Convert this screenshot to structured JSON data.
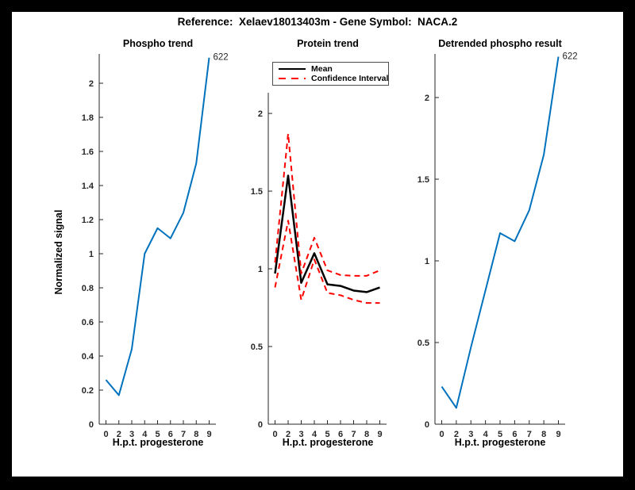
{
  "figure": {
    "title": "Reference:  Xelaev18013403m - Gene Symbol:  NACA.2",
    "background": "#ffffff",
    "frame_color": "#000000"
  },
  "axis_style": {
    "spine_color": "#262626",
    "tick_label_color": "#262626",
    "title_color": "#000000"
  },
  "chart_data": [
    {
      "type": "line",
      "title": "Phospho trend",
      "xlabel": "H.p.t. progesterone",
      "ylabel": "Normalized signal",
      "categories": [
        "0",
        "2",
        "3",
        "4",
        "5",
        "6",
        "7",
        "8",
        "9"
      ],
      "series": [
        {
          "name": "phospho-trend",
          "color": "#0072BD",
          "style": "solid",
          "width": 2,
          "values": [
            0.26,
            0.17,
            0.44,
            1.0,
            1.15,
            1.09,
            1.24,
            1.53,
            2.15
          ]
        }
      ],
      "annotation": {
        "text": "622",
        "position": "last-point"
      },
      "ylim": [
        0,
        2.172
      ],
      "yticks": [
        0,
        0.2,
        0.4,
        0.6,
        0.8,
        1,
        1.2,
        1.4,
        1.6,
        1.8,
        2
      ],
      "yticklabels": [
        "0",
        "0.2",
        "0.4",
        "0.6",
        "0.8",
        "1",
        "1.2",
        "1.4",
        "1.6",
        "1.8",
        "2"
      ],
      "grid": false,
      "legend": null
    },
    {
      "type": "line",
      "title": "Protein trend",
      "xlabel": "H.p.t. progesterone",
      "ylabel": "",
      "categories": [
        "0",
        "2",
        "3",
        "4",
        "5",
        "6",
        "7",
        "8",
        "9"
      ],
      "series": [
        {
          "name": "mean",
          "color": "#000000",
          "style": "solid",
          "width": 2.5,
          "values": [
            0.97,
            1.6,
            0.91,
            1.1,
            0.9,
            0.89,
            0.86,
            0.85,
            0.88
          ]
        },
        {
          "name": "confidence-interval-upper",
          "color": "#ff0000",
          "style": "dashed",
          "width": 2,
          "values": [
            1.04,
            1.87,
            0.97,
            1.2,
            0.99,
            0.96,
            0.955,
            0.955,
            0.99
          ]
        },
        {
          "name": "confidence-interval-lower",
          "color": "#ff0000",
          "style": "dashed",
          "width": 2,
          "values": [
            0.88,
            1.31,
            0.8,
            1.06,
            0.845,
            0.83,
            0.8,
            0.78,
            0.78
          ]
        }
      ],
      "annotation": null,
      "ylim": [
        0,
        2.133
      ],
      "yticks": [
        0,
        0.5,
        1,
        1.5,
        2
      ],
      "yticklabels": [
        "0",
        "0.5",
        "1",
        "1.5",
        "2"
      ],
      "grid": false,
      "legend": {
        "position": "northwest",
        "entries": [
          {
            "label": "Mean",
            "color": "#000000",
            "style": "solid"
          },
          {
            "label": "Confidence Interval",
            "color": "#ff0000",
            "style": "dashed"
          }
        ]
      }
    },
    {
      "type": "line",
      "title": "Detrended phospho result",
      "xlabel": "H.p.t. progesterone",
      "ylabel": "",
      "categories": [
        "0",
        "2",
        "3",
        "4",
        "5",
        "6",
        "7",
        "8",
        "9"
      ],
      "series": [
        {
          "name": "detrended-phospho",
          "color": "#0072BD",
          "style": "solid",
          "width": 2,
          "values": [
            0.23,
            0.1,
            0.47,
            0.82,
            1.17,
            1.12,
            1.31,
            1.65,
            2.25
          ]
        }
      ],
      "annotation": {
        "text": "622",
        "position": "last-point"
      },
      "ylim": [
        0,
        2.267
      ],
      "yticks": [
        0,
        0.5,
        1,
        1.5,
        2
      ],
      "yticklabels": [
        "0",
        "0.5",
        "1",
        "1.5",
        "2"
      ],
      "grid": false,
      "legend": null
    }
  ]
}
